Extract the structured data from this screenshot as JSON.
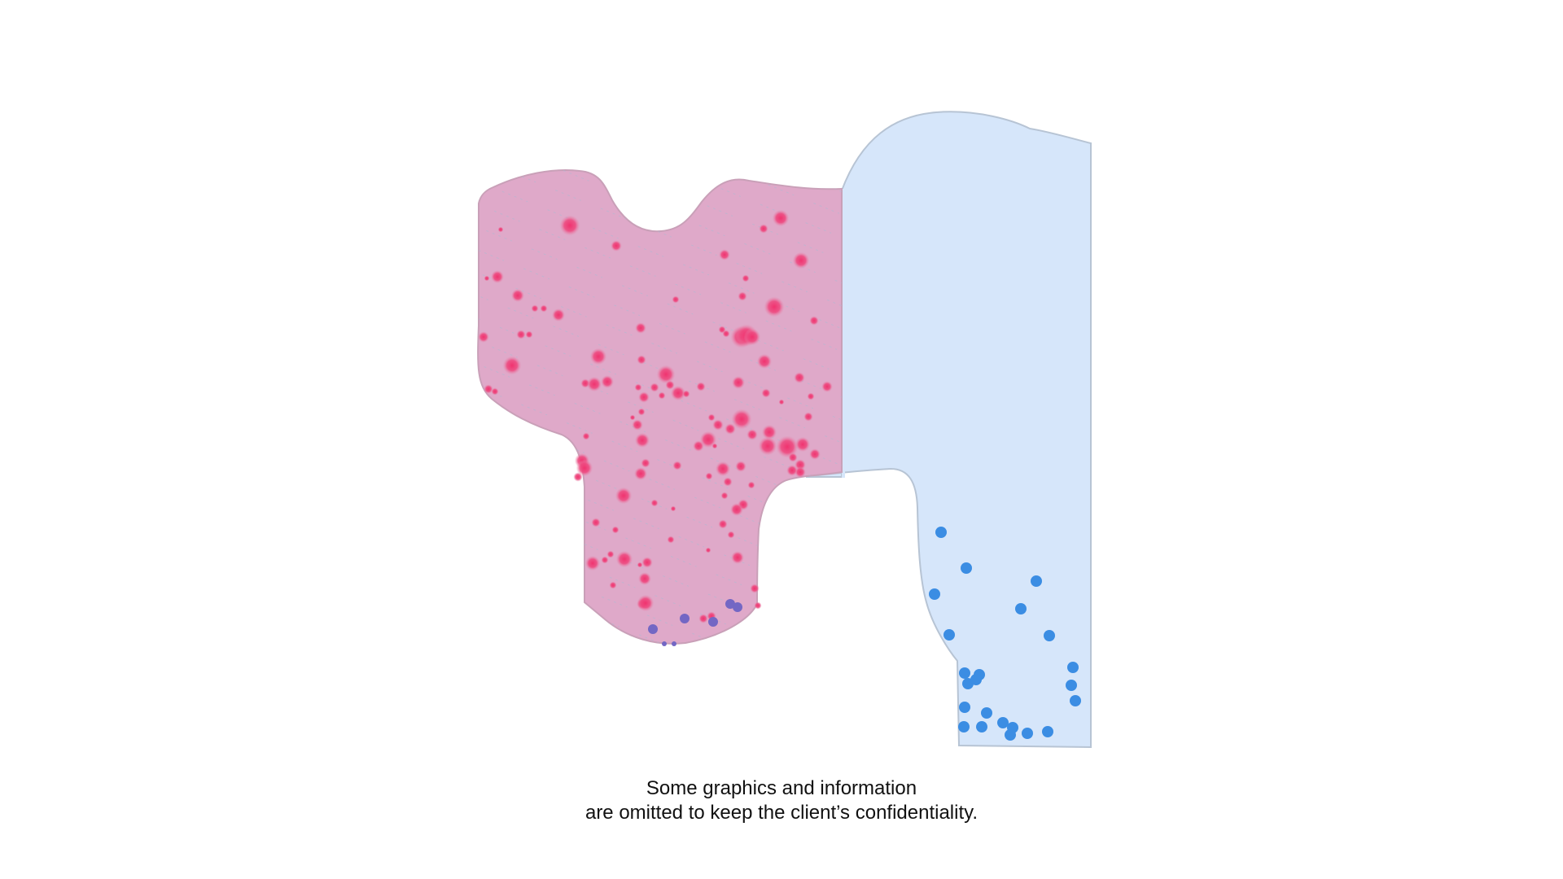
{
  "colors": {
    "background": "#ffffff",
    "pink_region_fill": "#dfa9c9",
    "pink_region_stroke": "#c9a0b8",
    "pink_dot": "#ec3f78",
    "purple_dot": "#7367c4",
    "blue_region_fill": "#d6e6fa",
    "blue_region_stroke": "#b7c4d4",
    "blue_dot": "#3b8de3",
    "caption_text": "#111111"
  },
  "caption": {
    "line1": "Some graphics and information",
    "line2": "are omitted to keep the client’s confidentiality."
  }
}
